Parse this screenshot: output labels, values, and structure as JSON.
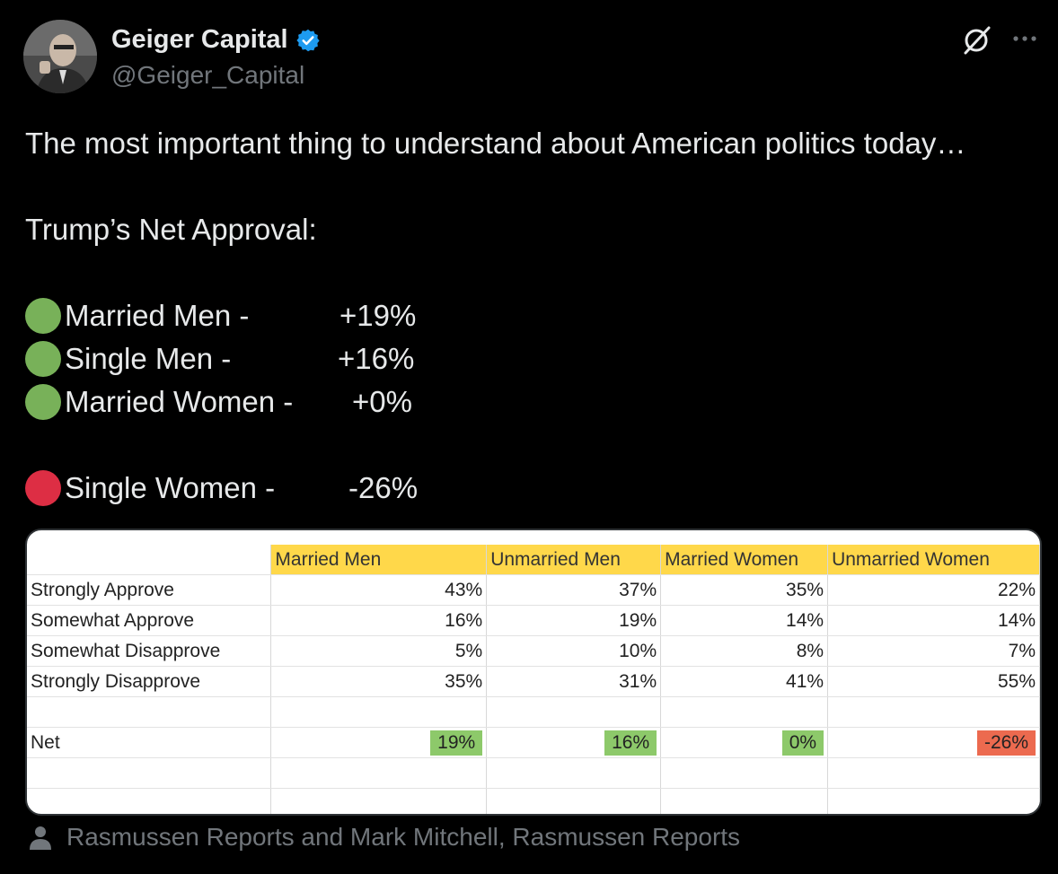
{
  "author": {
    "display_name": "Geiger Capital",
    "handle": "@Geiger_Capital",
    "verified_color": "#1d9bf0"
  },
  "tweet": {
    "line1": "The most important thing to understand about American politics today…",
    "heading": "Trump’s Net Approval:",
    "items": [
      {
        "label": "Married Men -",
        "value": "+19%",
        "color": "green"
      },
      {
        "label": "Single Men -",
        "value": "+16%",
        "color": "green"
      },
      {
        "label": "Married Women -",
        "value": "+0%",
        "color": "green"
      },
      {
        "label": "Single Women -",
        "value": "-26%",
        "color": "red"
      }
    ]
  },
  "table": {
    "headers": [
      "Married Men",
      "Unmarried Men",
      "Married Women",
      "Unmarried Women"
    ],
    "rows": [
      {
        "label": "Strongly Approve",
        "values": [
          "43%",
          "37%",
          "35%",
          "22%"
        ]
      },
      {
        "label": "Somewhat Approve",
        "values": [
          "16%",
          "19%",
          "14%",
          "14%"
        ]
      },
      {
        "label": "Somewhat Disapprove",
        "values": [
          "5%",
          "10%",
          "8%",
          "7%"
        ]
      },
      {
        "label": "Strongly Disapprove",
        "values": [
          "35%",
          "31%",
          "41%",
          "55%"
        ]
      }
    ],
    "net": {
      "label": "Net",
      "values": [
        "19%",
        "16%",
        "0%",
        "-26%"
      ]
    }
  },
  "source": "Rasmussen Reports and Mark Mitchell, Rasmussen Reports",
  "colors": {
    "green_dot": "#78b159",
    "red_dot": "#dd2e44",
    "header_yellow": "#ffd84a",
    "net_green": "#8dc96a",
    "net_red": "#ec6a4f"
  }
}
